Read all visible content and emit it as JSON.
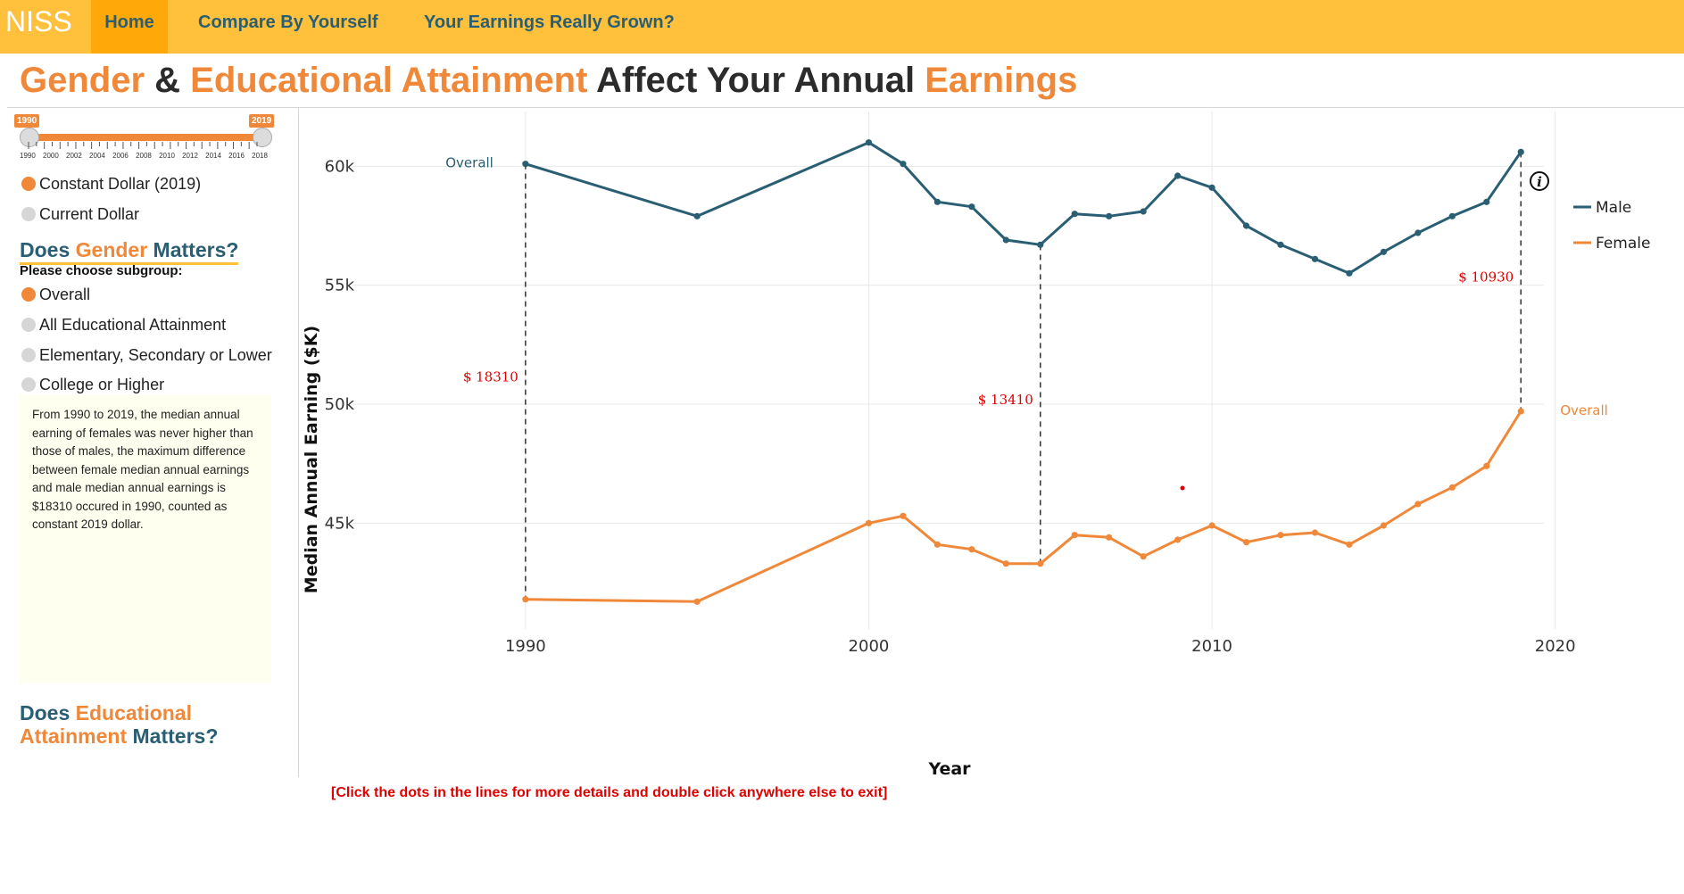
{
  "nav": {
    "brand": "NISS",
    "items": [
      {
        "label": "Home",
        "active": true
      },
      {
        "label": "Compare By Yourself",
        "active": false
      },
      {
        "label": "Your Earnings Really Grown?",
        "active": false
      }
    ]
  },
  "title": {
    "part1": "Gender",
    "part2": " & ",
    "part3": "Educational Attainment",
    "part4": " Affect Your Annual ",
    "part5": "Earnings"
  },
  "slider": {
    "start_badge": "1990",
    "end_badge": "2019",
    "tick_labels": [
      "1990",
      "2000",
      "2002",
      "2004",
      "2006",
      "2008",
      "2010",
      "2012",
      "2014",
      "2016",
      "2018"
    ]
  },
  "dollar_options": [
    {
      "label": "Constant Dollar (2019)",
      "selected": true
    },
    {
      "label": "Current Dollar",
      "selected": false
    }
  ],
  "gender_section": {
    "heading_a": "Does ",
    "heading_b": "Gender",
    "heading_c": " Matters?",
    "subgroup_label": "Please choose subgroup:",
    "options": [
      {
        "label": "Overall",
        "selected": true
      },
      {
        "label": "All Educational Attainment",
        "selected": false
      },
      {
        "label": "Elementary, Secondary or Lower",
        "selected": false
      },
      {
        "label": "College or Higher",
        "selected": false
      }
    ],
    "info_text": "From 1990 to 2019, the median annual earning of females was never higher than those of males, the maximum difference between female median annual earnings and male median annual earnings is $18310 occured in 1990, counted as constant 2019 dollar."
  },
  "edu_section": {
    "line1_a": "Does ",
    "line1_b": "Educational",
    "line2_a": "Attainment",
    "line2_b": " Matters?"
  },
  "click_note": "[Click the dots in the lines for more details and double click anywhere else to exit]",
  "colors": {
    "male": "#2a5e73",
    "female": "#f0883a",
    "annotation": "#e00000",
    "navbar": "#ffc03b"
  },
  "info_icon": "info-circle-icon",
  "chart_data": {
    "type": "line",
    "xlabel": "Year",
    "ylabel": "Median Annual Earning ($K)",
    "xlim": [
      1983.4,
      2023.7
    ],
    "ylim": [
      39.8,
      62.3
    ],
    "x_ticks": [
      1990,
      2000,
      2010,
      2020
    ],
    "y_ticks": [
      45,
      50,
      55,
      60
    ],
    "y_tick_labels": [
      "45k",
      "50k",
      "55k",
      "60k"
    ],
    "legend_position": "right",
    "series": [
      {
        "name": "Male",
        "x": [
          1990,
          1995,
          2000,
          2001,
          2002,
          2003,
          2004,
          2005,
          2006,
          2007,
          2008,
          2009,
          2010,
          2011,
          2012,
          2013,
          2014,
          2015,
          2016,
          2017,
          2018,
          2019
        ],
        "y": [
          60.1,
          57.9,
          61.0,
          60.1,
          58.5,
          58.3,
          56.9,
          56.7,
          58.0,
          57.9,
          58.1,
          59.6,
          59.1,
          57.5,
          56.7,
          56.1,
          55.5,
          56.4,
          57.2,
          57.9,
          58.5,
          60.6
        ]
      },
      {
        "name": "Female",
        "x": [
          1990,
          1995,
          2000,
          2001,
          2002,
          2003,
          2004,
          2005,
          2006,
          2007,
          2008,
          2009,
          2010,
          2011,
          2012,
          2013,
          2014,
          2015,
          2016,
          2017,
          2018,
          2019
        ],
        "y": [
          41.8,
          41.7,
          45.0,
          45.3,
          44.1,
          43.9,
          43.3,
          43.3,
          44.5,
          44.4,
          43.6,
          44.3,
          44.9,
          44.2,
          44.5,
          44.6,
          44.1,
          44.9,
          45.8,
          46.5,
          47.4,
          49.7
        ]
      }
    ],
    "gap_annotations": [
      {
        "x": 1990,
        "label": "$ 18310"
      },
      {
        "x": 2005,
        "label": "$ 13410"
      },
      {
        "x": 2019,
        "label": "$ 10930"
      }
    ],
    "end_labels": [
      {
        "series": "Male",
        "x": 1990,
        "label": "Overall"
      },
      {
        "series": "Female",
        "x": 2019,
        "label": "Overall"
      }
    ]
  }
}
